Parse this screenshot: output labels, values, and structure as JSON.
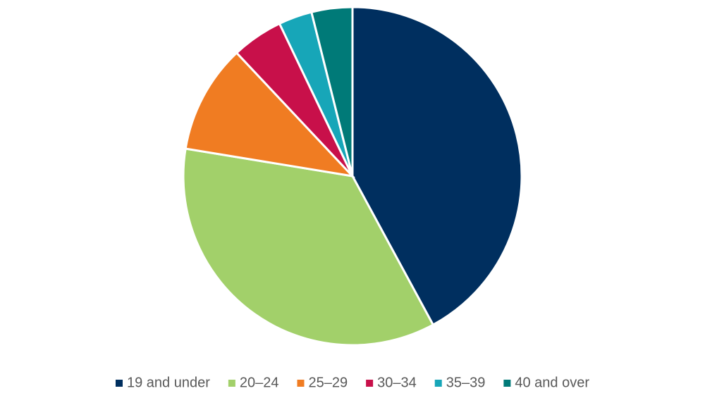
{
  "chart_data": {
    "type": "pie",
    "categories": [
      "19 and under",
      "20–24",
      "25–29",
      "30–34",
      "35–39",
      "40 and over"
    ],
    "values": [
      42.1,
      35.5,
      10.4,
      4.9,
      3.2,
      3.9
    ],
    "colors": [
      "#002f5f",
      "#a2d06a",
      "#f07c22",
      "#c8104a",
      "#17a6b8",
      "#007a78"
    ],
    "legend": "bottom"
  }
}
